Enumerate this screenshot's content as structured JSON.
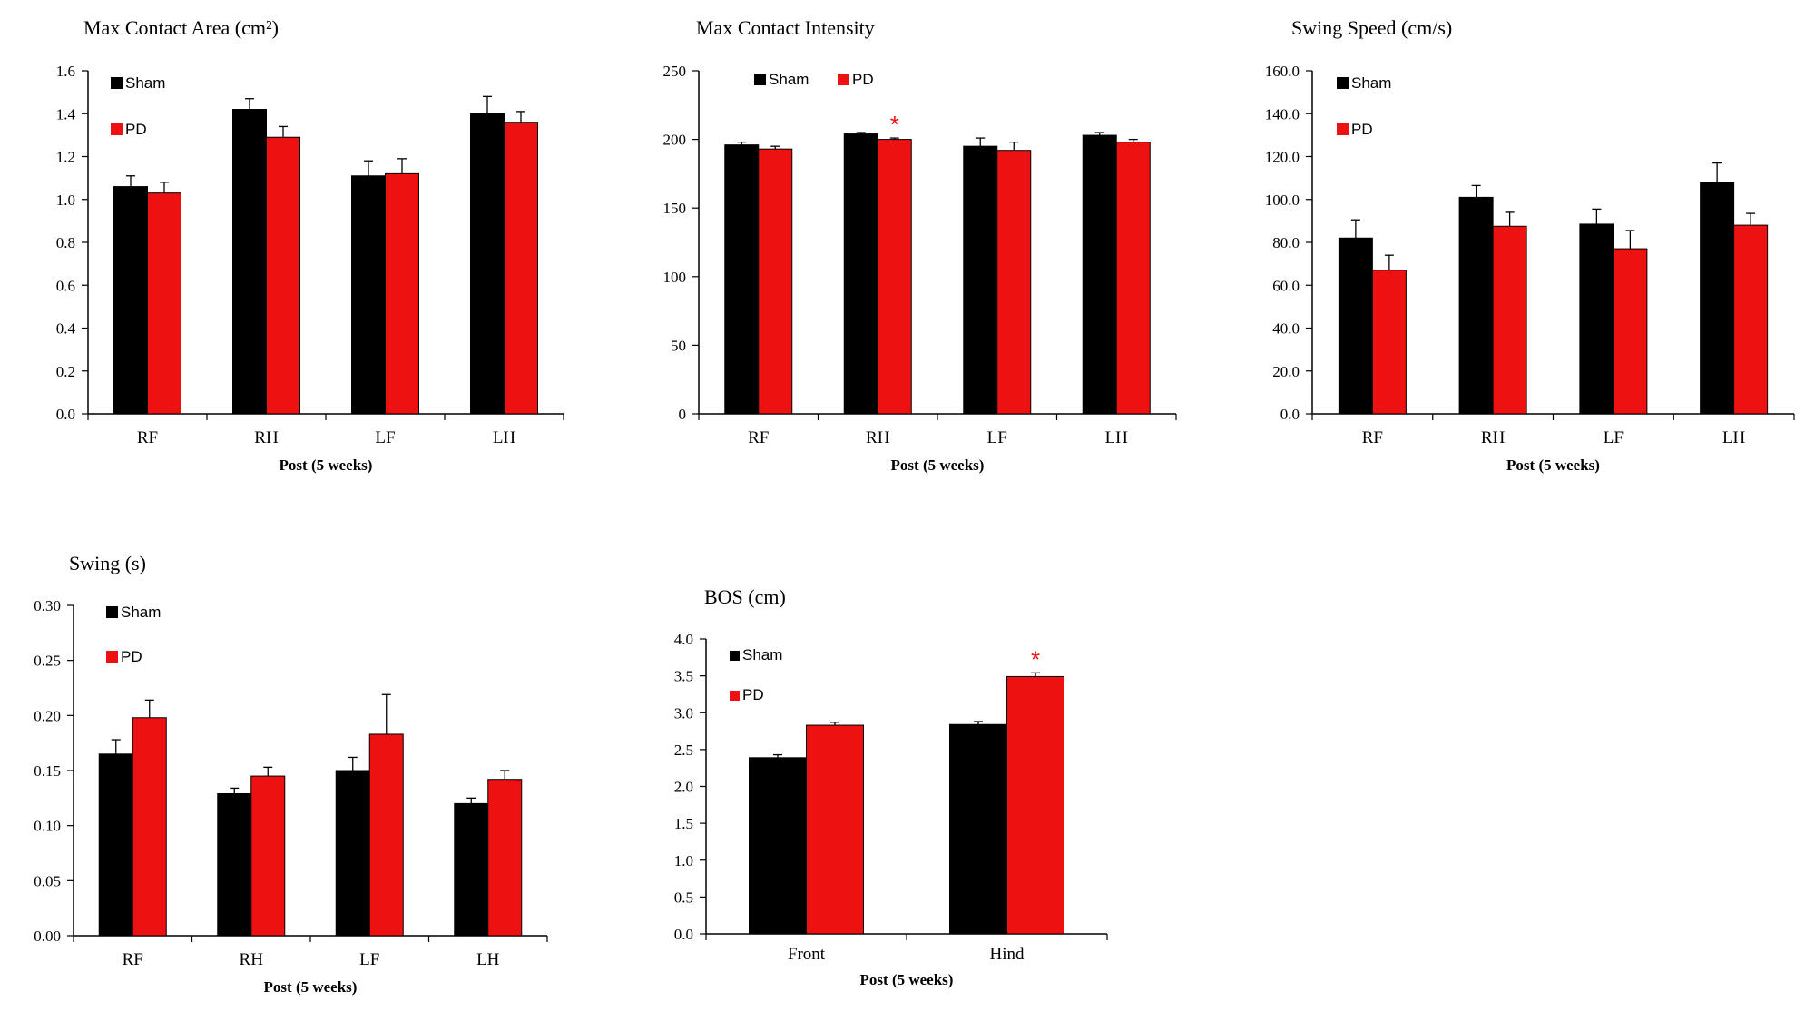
{
  "colors": {
    "sham": "#000000",
    "pd": "#ee1111",
    "axis": "#000000",
    "star": "#ee1111"
  },
  "chart_data": [
    {
      "id": "max-contact-area",
      "type": "bar",
      "title": "Max Contact Area (cm²)",
      "xlabel": "Post (5 weeks)",
      "ylabel": "",
      "categories": [
        "RF",
        "RH",
        "LF",
        "LH"
      ],
      "ylim": [
        0,
        1.6
      ],
      "yticks": [
        "0.0",
        "0.2",
        "0.4",
        "0.6",
        "0.8",
        "1.0",
        "1.2",
        "1.4",
        "1.6"
      ],
      "grid": false,
      "legend": "top-left",
      "series": [
        {
          "name": "Sham",
          "values": [
            1.06,
            1.42,
            1.11,
            1.4
          ],
          "errors": [
            0.05,
            0.05,
            0.07,
            0.08
          ]
        },
        {
          "name": "PD",
          "values": [
            1.03,
            1.29,
            1.12,
            1.36
          ],
          "errors": [
            0.05,
            0.05,
            0.07,
            0.05
          ]
        }
      ],
      "significance": []
    },
    {
      "id": "max-contact-intensity",
      "type": "bar",
      "title": "Max Contact Intensity",
      "xlabel": "Post (5 weeks)",
      "ylabel": "",
      "categories": [
        "RF",
        "RH",
        "LF",
        "LH"
      ],
      "ylim": [
        0,
        250
      ],
      "yticks": [
        "0",
        "50",
        "100",
        "150",
        "200",
        "250"
      ],
      "grid": false,
      "legend": "top-left",
      "series": [
        {
          "name": "Sham",
          "values": [
            196,
            204,
            195,
            203
          ],
          "errors": [
            2,
            1,
            6,
            2
          ]
        },
        {
          "name": "PD",
          "values": [
            193,
            200,
            192,
            198
          ],
          "errors": [
            2,
            1,
            6,
            2
          ]
        }
      ],
      "significance": [
        {
          "category": "RH",
          "series": "PD",
          "label": "*"
        }
      ]
    },
    {
      "id": "swing-speed",
      "type": "bar",
      "title": "Swing Speed (cm/s)",
      "xlabel": "Post (5 weeks)",
      "ylabel": "",
      "categories": [
        "RF",
        "RH",
        "LF",
        "LH"
      ],
      "ylim": [
        0,
        160
      ],
      "yticks": [
        "0.0",
        "20.0",
        "40.0",
        "60.0",
        "80.0",
        "100.0",
        "120.0",
        "140.0",
        "160.0"
      ],
      "grid": false,
      "legend": "top-left",
      "series": [
        {
          "name": "Sham",
          "values": [
            82,
            101,
            88.5,
            108
          ],
          "errors": [
            8.5,
            5.5,
            7,
            9
          ]
        },
        {
          "name": "PD",
          "values": [
            67,
            87.5,
            77,
            88
          ],
          "errors": [
            7,
            6.5,
            8.5,
            5.5
          ]
        }
      ],
      "significance": []
    },
    {
      "id": "swing",
      "type": "bar",
      "title": "Swing (s)",
      "xlabel": "Post (5 weeks)",
      "ylabel": "",
      "categories": [
        "RF",
        "RH",
        "LF",
        "LH"
      ],
      "ylim": [
        0,
        0.3
      ],
      "yticks": [
        "0.00",
        "0.05",
        "0.10",
        "0.15",
        "0.20",
        "0.25",
        "0.30"
      ],
      "grid": false,
      "legend": "top-left",
      "series": [
        {
          "name": "Sham",
          "values": [
            0.165,
            0.129,
            0.15,
            0.12
          ],
          "errors": [
            0.013,
            0.005,
            0.012,
            0.005
          ]
        },
        {
          "name": "PD",
          "values": [
            0.198,
            0.145,
            0.183,
            0.142
          ],
          "errors": [
            0.016,
            0.008,
            0.036,
            0.008
          ]
        }
      ],
      "significance": []
    },
    {
      "id": "bos",
      "type": "bar",
      "title": "BOS (cm)",
      "xlabel": "Post (5 weeks)",
      "ylabel": "",
      "categories": [
        "Front",
        "Hind"
      ],
      "ylim": [
        0,
        4
      ],
      "yticks": [
        "0.0",
        "0.5",
        "1.0",
        "1.5",
        "2.0",
        "2.5",
        "3.0",
        "3.5",
        "4.0"
      ],
      "grid": false,
      "legend": "top-left",
      "series": [
        {
          "name": "Sham",
          "values": [
            2.39,
            2.84
          ],
          "errors": [
            0.04,
            0.04
          ]
        },
        {
          "name": "PD",
          "values": [
            2.83,
            3.49
          ],
          "errors": [
            0.04,
            0.05
          ]
        }
      ],
      "significance": [
        {
          "category": "Hind",
          "series": "PD",
          "label": "*"
        }
      ]
    }
  ]
}
